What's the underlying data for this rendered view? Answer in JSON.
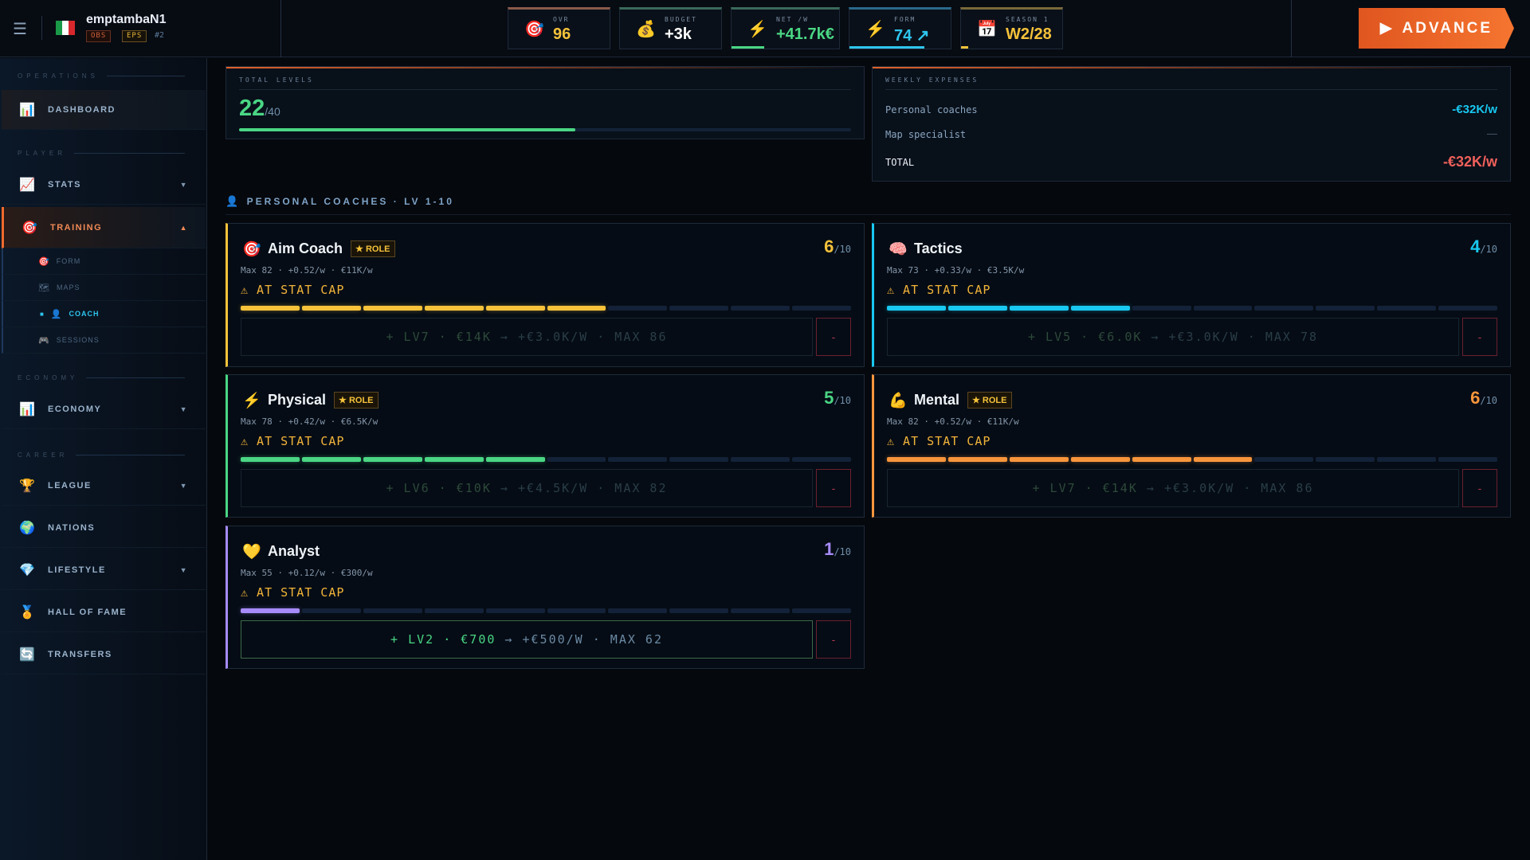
{
  "header": {
    "menu_icon": "hamburger-icon",
    "player_name": "emptambaN1",
    "flag": "italy-flag",
    "tags": [
      "OBS",
      "EPS"
    ],
    "rank": "#2",
    "tiles": [
      {
        "icon": "target-icon",
        "glyph": "🎯",
        "label": "OVR",
        "value": "96",
        "color": "#f5c23a",
        "accent": "#8a5a4a",
        "progress": 0
      },
      {
        "icon": "money-bag-icon",
        "glyph": "💰",
        "label": "BUDGET",
        "value": "+3k",
        "color": "#ffffff",
        "accent": "#3a6a5a",
        "progress": 0
      },
      {
        "icon": "lightning-icon",
        "glyph": "⚡",
        "label": "NET /W",
        "value": "+41.7k€",
        "color": "#4ad684",
        "accent": "#3a6a5a",
        "progress": 0.3
      },
      {
        "icon": "lightning-icon",
        "glyph": "⚡",
        "label": "FORM",
        "value": "74 ↗",
        "color": "#2ec5ee",
        "accent": "#2a6a8a",
        "progress": 0.74
      },
      {
        "icon": "calendar-icon",
        "glyph": "📅",
        "label": "SEASON 1",
        "value": "W2/28",
        "color": "#f5c23a",
        "accent": "#7a6a3a",
        "progress": 0.07
      }
    ],
    "advance_label": "ADVANCE"
  },
  "sidebar": {
    "sections": {
      "operations": "OPERATIONS",
      "player": "PLAYER",
      "economy": "ECONOMY",
      "career": "CAREER"
    },
    "items": {
      "dashboard": {
        "label": "DASHBOARD",
        "glyph": "📊"
      },
      "stats": {
        "label": "STATS",
        "glyph": "📈"
      },
      "training": {
        "label": "TRAINING",
        "glyph": "🎯"
      },
      "economy": {
        "label": "ECONOMY",
        "glyph": "📊"
      },
      "league": {
        "label": "LEAGUE",
        "glyph": "🏆"
      },
      "nations": {
        "label": "NATIONS",
        "glyph": "🌍"
      },
      "lifestyle": {
        "label": "LIFESTYLE",
        "glyph": "💎"
      },
      "hall_of_fame": {
        "label": "HALL OF FAME",
        "glyph": "🏅"
      },
      "transfers": {
        "label": "TRANSFERS",
        "glyph": "🔄"
      }
    },
    "training_sub": [
      {
        "label": "FORM",
        "glyph": "🎯"
      },
      {
        "label": "MAPS",
        "glyph": "🗺"
      },
      {
        "label": "COACH",
        "glyph": "👤"
      },
      {
        "label": "SESSIONS",
        "glyph": "🎮"
      }
    ]
  },
  "total_levels": {
    "label": "TOTAL LEVELS",
    "value": "22",
    "max": "/40",
    "progress": 0.55
  },
  "weekly_expenses": {
    "label": "WEEKLY EXPENSES",
    "rows": [
      {
        "name": "Personal coaches",
        "value": "-€32K/w"
      },
      {
        "name": "Map specialist",
        "value": "—"
      }
    ],
    "total_label": "TOTAL",
    "total_value": "-€32K/w"
  },
  "section_title": "PERSONAL COACHES · LV 1-10",
  "coaches": [
    {
      "name": "Aim Coach",
      "glyph": "🎯",
      "icon": "target-icon",
      "role": "★ ROLE",
      "level": 6,
      "level_text": "6",
      "max_text": "/10",
      "color": "#f5c23a",
      "meta": "Max 82 · +0.52/w · €11K/w",
      "warning": "⚠ AT STAT CAP",
      "upgrade_a": "+ LV7 · €14K",
      "upgrade_b": "→ +€3.0K/W · MAX 86",
      "upgrade_enabled": false,
      "minus": "-"
    },
    {
      "name": "Tactics",
      "glyph": "🧠",
      "icon": "brain-icon",
      "role": "",
      "level": 4,
      "level_text": "4",
      "max_text": "/10",
      "color": "#18c8f0",
      "meta": "Max 73 · +0.33/w · €3.5K/w",
      "warning": "⚠ AT STAT CAP",
      "upgrade_a": "+ LV5 · €6.0K",
      "upgrade_b": "→ +€3.0K/W · MAX 78",
      "upgrade_enabled": false,
      "minus": "-"
    },
    {
      "name": "Physical",
      "glyph": "⚡",
      "icon": "lightning-icon",
      "role": "★ ROLE",
      "level": 5,
      "level_text": "5",
      "max_text": "/10",
      "color": "#4ad684",
      "meta": "Max 78 · +0.42/w · €6.5K/w",
      "warning": "⚠ AT STAT CAP",
      "upgrade_a": "+ LV6 · €10K",
      "upgrade_b": "→ +€4.5K/W · MAX 82",
      "upgrade_enabled": false,
      "minus": "-"
    },
    {
      "name": "Mental",
      "glyph": "💪",
      "icon": "muscle-icon",
      "role": "★ ROLE",
      "level": 6,
      "level_text": "6",
      "max_text": "/10",
      "color": "#f7953c",
      "meta": "Max 82 · +0.52/w · €11K/w",
      "warning": "⚠ AT STAT CAP",
      "upgrade_a": "+ LV7 · €14K",
      "upgrade_b": "→ +€3.0K/W · MAX 86",
      "upgrade_enabled": false,
      "minus": "-"
    },
    {
      "name": "Analyst",
      "glyph": "💛",
      "icon": "heart-hands-icon",
      "role": "",
      "level": 1,
      "level_text": "1",
      "max_text": "/10",
      "color": "#a78bfa",
      "meta": "Max 55 · +0.12/w · €300/w",
      "warning": "⚠ AT STAT CAP",
      "upgrade_a": "+ LV2 · €700",
      "upgrade_b": "→ +€500/W · MAX 62",
      "upgrade_enabled": true,
      "minus": "-"
    }
  ]
}
